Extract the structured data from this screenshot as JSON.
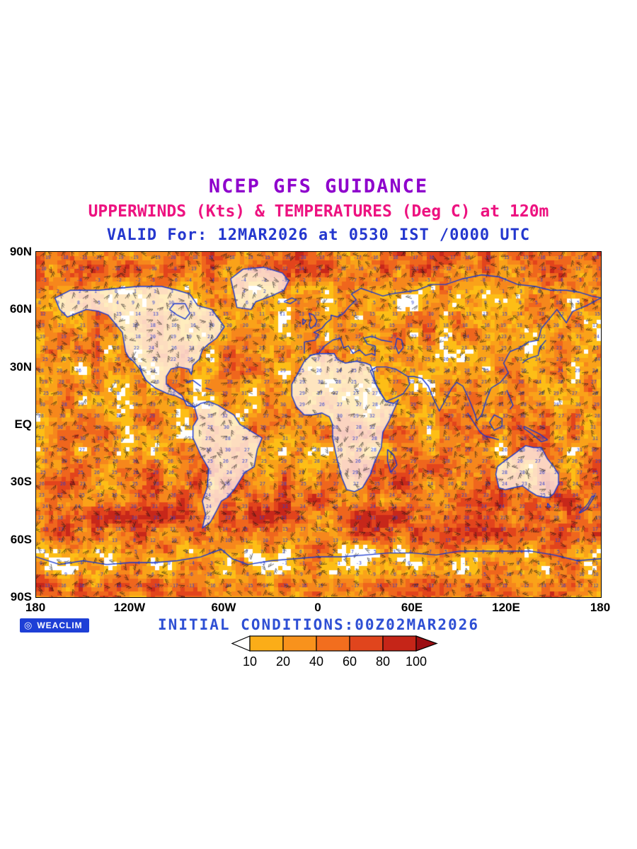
{
  "header": {
    "title": "NCEP GFS GUIDANCE",
    "subtitle": "UPPERWINDS (Kts) & TEMPERATURES (Deg C) at 120m",
    "valid_line": "VALID For: 12MAR2026 at 0530 IST /0000 UTC"
  },
  "map": {
    "lat_labels": [
      "90N",
      "60N",
      "30N",
      "EQ",
      "30S",
      "60S",
      "90S"
    ],
    "lon_labels": [
      "180",
      "120W",
      "60W",
      "0",
      "60E",
      "120E",
      "180"
    ]
  },
  "footer": {
    "logo_label": "WEACLIM",
    "initial_conditions": "INITIAL CONDITIONS:00Z02MAR2026"
  },
  "colorbar": {
    "tick_labels": [
      "10",
      "20",
      "40",
      "60",
      "80",
      "100"
    ],
    "box_colors": [
      "#FBAD18",
      "#F8921C",
      "#F26E1E",
      "#E0451D",
      "#C52518"
    ],
    "left_arrow_color": "#FFFFFF",
    "right_arrow_color": "#9C0E12"
  },
  "colors": {
    "title": "#8E00CC",
    "subtitle": "#ED1280",
    "valid": "#2437CE",
    "initial": "#2E4FD4",
    "logo_bg": "#1E3FD6",
    "axis_text": "#000000"
  },
  "map_style": {
    "shade_palette": [
      "#FDBE16",
      "#FAA219",
      "#F6871C",
      "#EF661D",
      "#E2441C",
      "#C7271A"
    ],
    "coast_color": "#1838CF",
    "temp_number_color": "#2B3FD2",
    "barb_color": "#141414",
    "background": "#FFFFFF"
  }
}
